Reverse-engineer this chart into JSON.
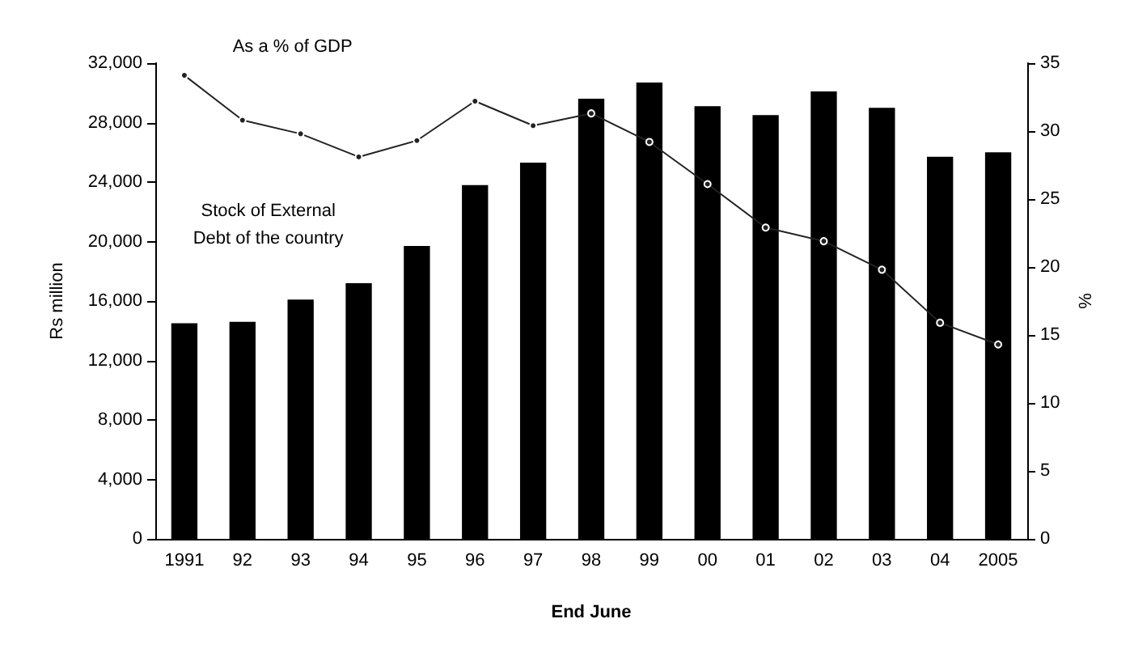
{
  "chart_data": {
    "type": "bar",
    "xlabel": "End June",
    "ylabel": "Rs million",
    "y2label": "%",
    "categories": [
      "1991",
      "92",
      "93",
      "94",
      "95",
      "96",
      "97",
      "98",
      "99",
      "00",
      "01",
      "02",
      "03",
      "04",
      "2005"
    ],
    "series": [
      {
        "name": "Stock of External Debt of the country",
        "color": "#000000",
        "values": [
          14500,
          14600,
          16100,
          17200,
          19700,
          23800,
          25300,
          29600,
          30700,
          29100,
          28500,
          30100,
          29000,
          25700,
          26000
        ]
      },
      {
        "name": "As a % of GDP",
        "type": "line",
        "axis": "y2",
        "color": "#222222",
        "marker": "circle",
        "line_style": "solid",
        "values": [
          34.1,
          30.8,
          29.8,
          28.1,
          29.3,
          32.2,
          30.4,
          31.3,
          29.2,
          26.1,
          22.9,
          21.9,
          19.8,
          15.9,
          14.3
        ]
      }
    ],
    "ylim": [
      0,
      32000
    ],
    "yticks": [
      0,
      {
        "value": 4000,
        "label": "4,000"
      },
      {
        "value": 8000,
        "label": "8,000"
      },
      {
        "value": 12000,
        "label": "12,000"
      },
      {
        "value": 16000,
        "label": "16,000"
      },
      {
        "value": 20000,
        "label": "20,000"
      },
      {
        "value": 24000,
        "label": "24,000"
      },
      {
        "value": 28000,
        "label": "28,000"
      },
      {
        "value": 32000,
        "label": "32,000"
      }
    ],
    "y2lim": [
      0,
      35
    ],
    "y2ticks": [
      0,
      5,
      10,
      15,
      20,
      25,
      30,
      35
    ],
    "grid": false,
    "legend": false
  }
}
